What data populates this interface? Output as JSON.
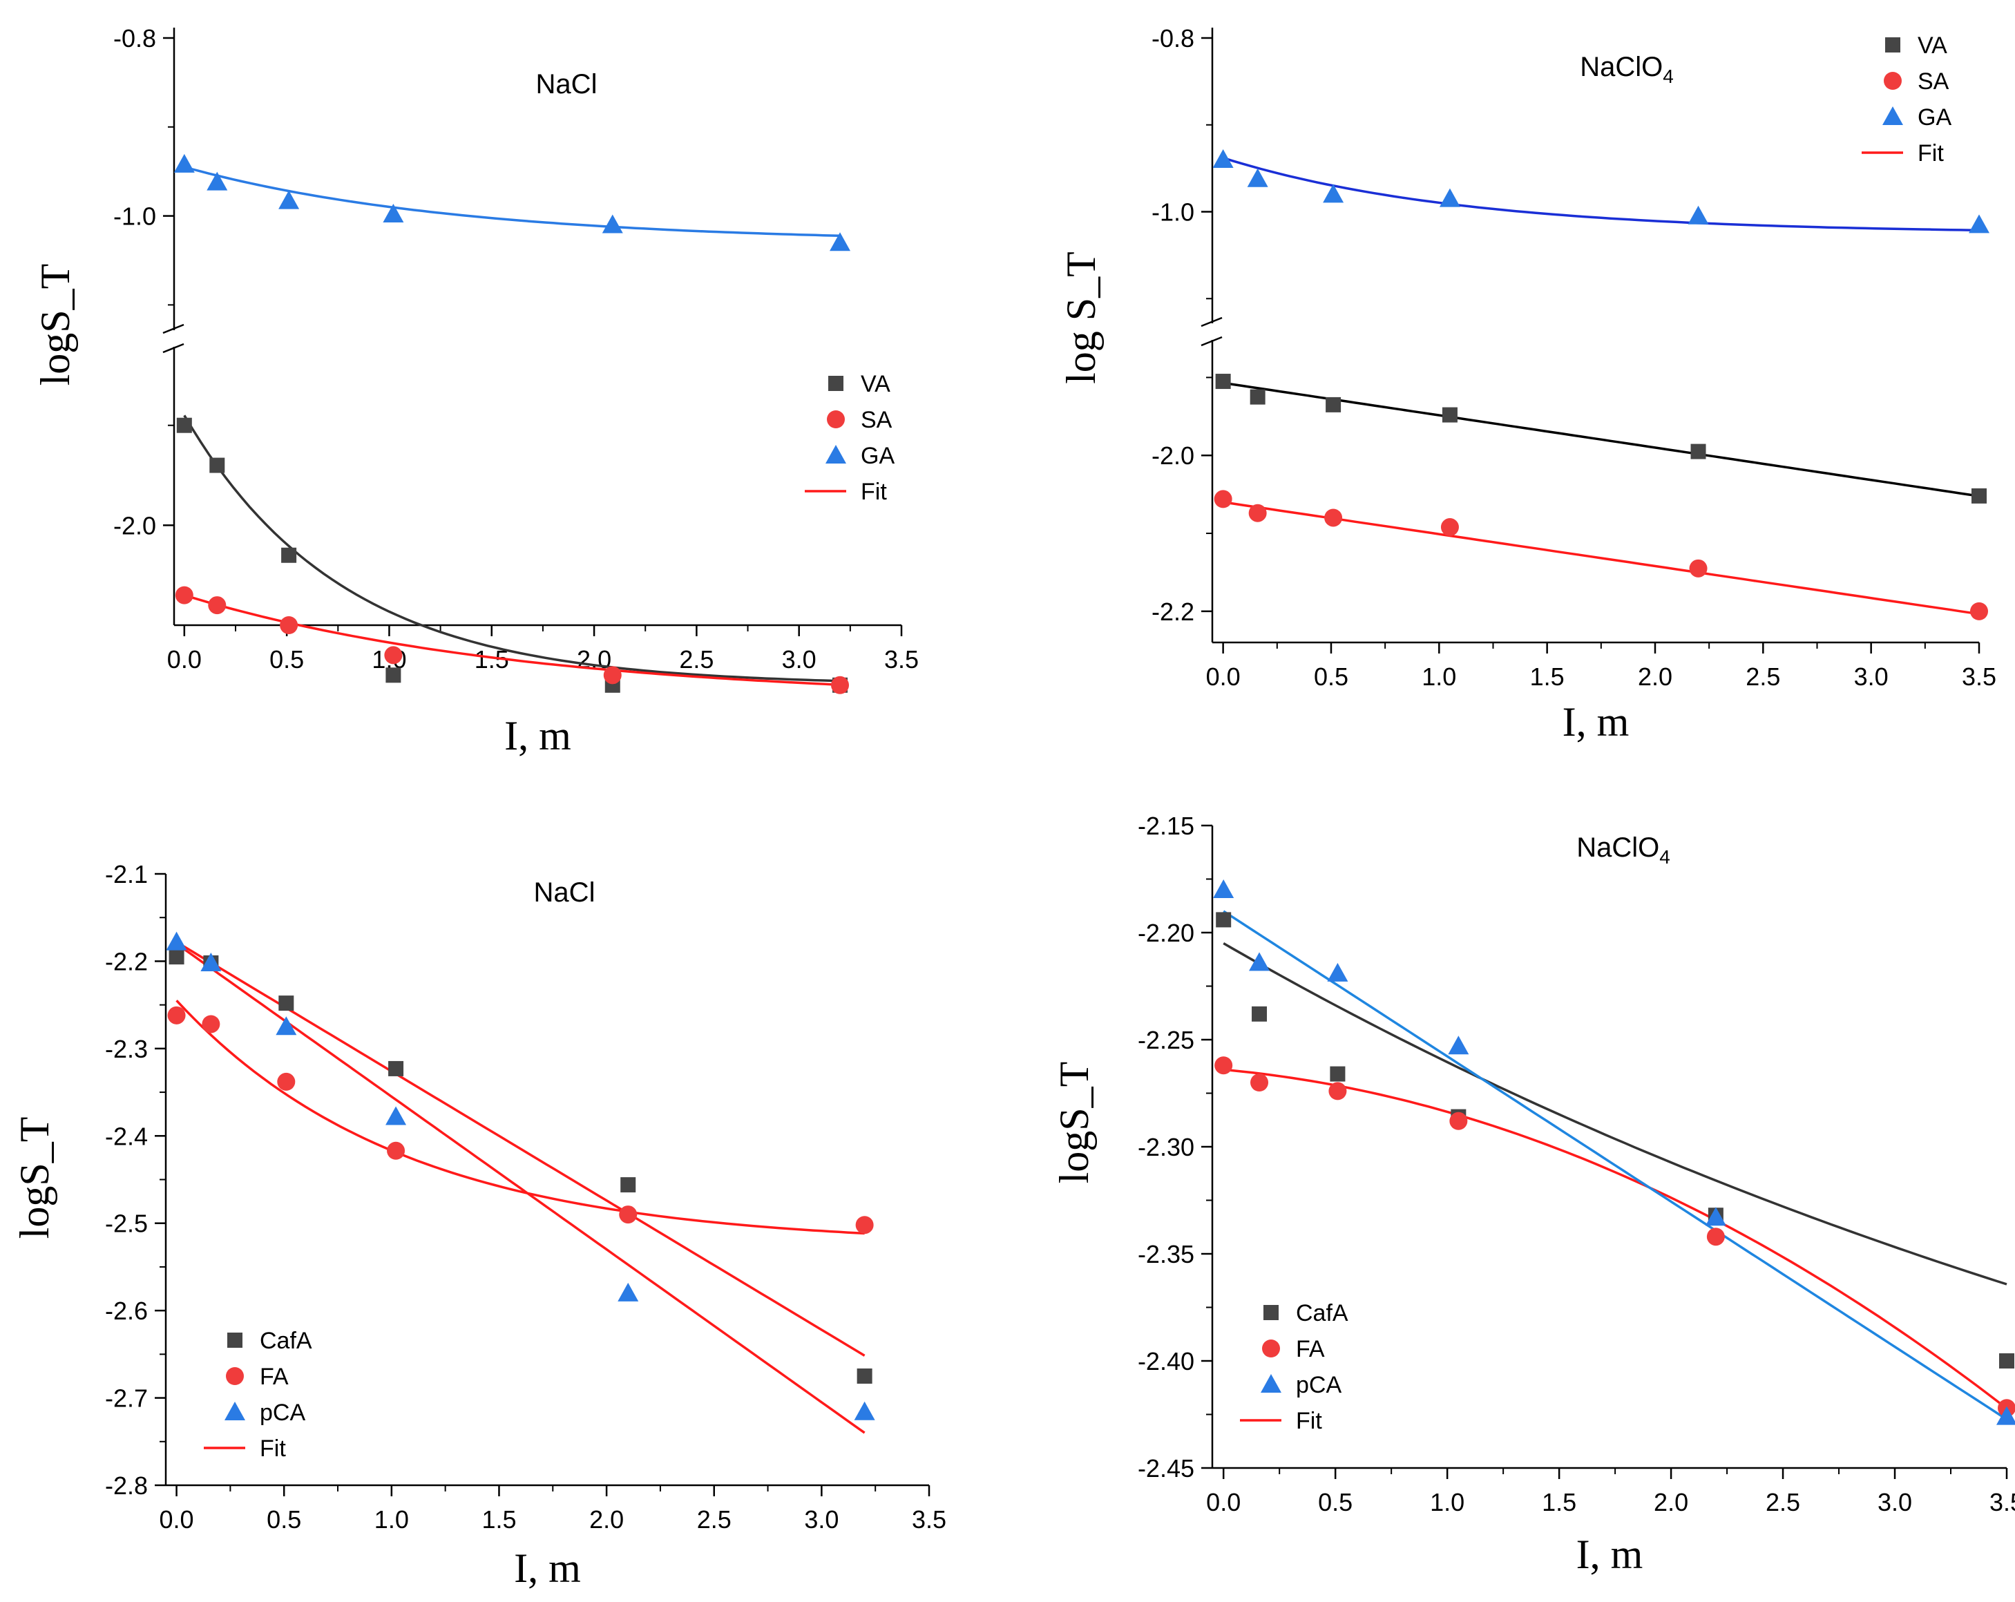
{
  "chart_data": [
    {
      "type": "scatter",
      "title": "NaCl",
      "xlabel": "I, m",
      "ylabel": "logS_T",
      "xlim": [
        -0.05,
        3.5
      ],
      "xticks": [
        "0.0",
        "0.5",
        "1.0",
        "1.5",
        "2.0",
        "2.5",
        "3.0",
        "3.5"
      ],
      "broken_axis": true,
      "upper_ylim": [
        -1.13,
        -0.8
      ],
      "lower_ylim": [
        -2.1,
        -1.82
      ],
      "yticks": [
        "-0.8",
        "-1.0",
        "-2.0"
      ],
      "legend": [
        "VA",
        "SA",
        "GA",
        "Fit"
      ],
      "series": [
        {
          "name": "VA",
          "x": [
            0.0,
            0.16,
            0.51,
            1.02,
            2.09,
            3.2
          ],
          "y": [
            -1.9,
            -1.94,
            -2.03,
            -2.15,
            -2.16,
            -2.16
          ]
        },
        {
          "name": "SA",
          "x": [
            0.0,
            0.16,
            0.51,
            1.02,
            2.09,
            3.2
          ],
          "y": [
            -2.07,
            -2.08,
            -2.1,
            -2.13,
            -2.15,
            -2.16
          ]
        },
        {
          "name": "GA",
          "x": [
            0.0,
            0.16,
            0.51,
            1.02,
            2.09,
            3.2
          ],
          "y": [
            -0.942,
            -0.962,
            -0.983,
            -0.998,
            -1.01,
            -1.03
          ]
        }
      ]
    },
    {
      "type": "scatter",
      "title": "NaClO",
      "title_subscript": "4",
      "xlabel": "I, m",
      "ylabel": "log S_T",
      "xlim": [
        -0.05,
        3.5
      ],
      "xticks": [
        "0.0",
        "0.5",
        "1.0",
        "1.5",
        "2.0",
        "2.5",
        "3.0",
        "3.5"
      ],
      "broken_axis": true,
      "upper_ylim": [
        -1.13,
        -0.8
      ],
      "lower_ylim": [
        -2.24,
        -1.85
      ],
      "yticks": [
        "-0.8",
        "-1.0",
        "-2.0",
        "-2.2"
      ],
      "legend": [
        "VA",
        "SA",
        "GA",
        "Fit"
      ],
      "series": [
        {
          "name": "VA",
          "x": [
            0.0,
            0.16,
            0.51,
            1.05,
            2.2,
            3.5
          ],
          "y": [
            -1.905,
            -1.925,
            -1.935,
            -1.948,
            -1.995,
            -2.052
          ]
        },
        {
          "name": "SA",
          "x": [
            0.0,
            0.16,
            0.51,
            1.05,
            2.2,
            3.5
          ],
          "y": [
            -2.056,
            -2.074,
            -2.08,
            -2.092,
            -2.145,
            -2.2
          ]
        },
        {
          "name": "GA",
          "x": [
            0.0,
            0.16,
            0.51,
            1.05,
            2.2,
            3.5
          ],
          "y": [
            -0.94,
            -0.962,
            -0.98,
            -0.985,
            -1.005,
            -1.015
          ]
        }
      ]
    },
    {
      "type": "scatter",
      "title": "NaCl",
      "xlabel": "I, m",
      "ylabel": "logS_T",
      "xlim": [
        -0.05,
        3.5
      ],
      "ylim": [
        -2.8,
        -2.1
      ],
      "xticks": [
        "0.0",
        "0.5",
        "1.0",
        "1.5",
        "2.0",
        "2.5",
        "3.0",
        "3.5"
      ],
      "yticks": [
        "-2.1",
        "-2.2",
        "-2.3",
        "-2.4",
        "-2.5",
        "-2.6",
        "-2.7",
        "-2.8"
      ],
      "legend": [
        "CafA",
        "FA",
        "pCA",
        "Fit"
      ],
      "series": [
        {
          "name": "CafA",
          "x": [
            0.0,
            0.16,
            0.51,
            1.02,
            2.1,
            3.2
          ],
          "y": [
            -2.195,
            -2.202,
            -2.248,
            -2.323,
            -2.456,
            -2.675
          ]
        },
        {
          "name": "FA",
          "x": [
            0.0,
            0.16,
            0.51,
            1.02,
            2.1,
            3.2
          ],
          "y": [
            -2.262,
            -2.272,
            -2.338,
            -2.417,
            -2.49,
            -2.502
          ]
        },
        {
          "name": "pCA",
          "x": [
            0.0,
            0.16,
            0.51,
            1.02,
            2.1,
            3.2
          ],
          "y": [
            -2.178,
            -2.202,
            -2.275,
            -2.378,
            -2.58,
            -2.716
          ]
        }
      ]
    },
    {
      "type": "scatter",
      "title": "NaClO",
      "title_subscript": "4",
      "xlabel": "I, m",
      "ylabel": "logS_T",
      "xlim": [
        -0.05,
        3.5
      ],
      "ylim": [
        -2.45,
        -2.15
      ],
      "xticks": [
        "0.0",
        "0.5",
        "1.0",
        "1.5",
        "2.0",
        "2.5",
        "3.0",
        "3.5"
      ],
      "yticks": [
        "-2.15",
        "-2.20",
        "-2.25",
        "-2.30",
        "-2.35",
        "-2.40",
        "-2.45"
      ],
      "legend": [
        "CafA",
        "FA",
        "pCA",
        "Fit"
      ],
      "series": [
        {
          "name": "CafA",
          "x": [
            0.0,
            0.16,
            0.51,
            1.05,
            2.2,
            3.5
          ],
          "y": [
            -2.194,
            -2.238,
            -2.266,
            -2.286,
            -2.332,
            -2.4
          ]
        },
        {
          "name": "FA",
          "x": [
            0.0,
            0.16,
            0.51,
            1.05,
            2.2,
            3.5
          ],
          "y": [
            -2.262,
            -2.27,
            -2.274,
            -2.288,
            -2.342,
            -2.422
          ]
        },
        {
          "name": "pCA",
          "x": [
            0.0,
            0.16,
            0.51,
            1.05,
            2.2,
            3.5
          ],
          "y": [
            -2.18,
            -2.214,
            -2.219,
            -2.253,
            -2.333,
            -2.426
          ]
        }
      ]
    }
  ],
  "colors": {
    "square": "#454545",
    "circle": "#f03c3c",
    "triangle": "#2a7be4",
    "fit_red": "#ff1a1a",
    "fit_blue": "#1f86e0",
    "fit_dark": "#333333",
    "fit_navy": "#1a2fd6"
  }
}
